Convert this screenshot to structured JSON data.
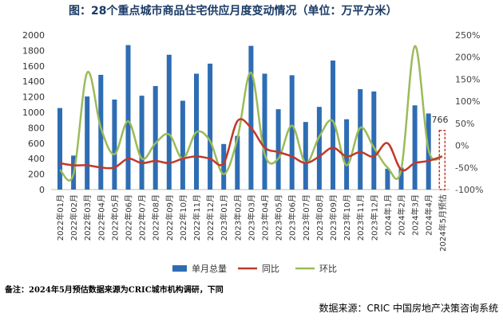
{
  "title": "图：28个重点城市商品住宅供应月度变动情况（单位：万平方米）",
  "note": "备注：2024年5月预估数据来源为CRIC城市机构调研，下同",
  "source": "数据来源：CRIC 中国房地产决策咨询系统",
  "callout_label": "766",
  "colors": {
    "bar": "#2e6db3",
    "yoy": "#c0392b",
    "mom": "#9bbb59",
    "forecast_box": "#c0392b"
  },
  "chart_data": {
    "type": "bar",
    "categories": [
      "2022年01月",
      "2022年02月",
      "2022年03月",
      "2022年04月",
      "2022年05月",
      "2022年06月",
      "2022年07月",
      "2022年08月",
      "2022年09月",
      "2022年10月",
      "2022年11月",
      "2022年12月",
      "2023年01月",
      "2023年02月",
      "2023年03月",
      "2023年04月",
      "2023年05月",
      "2023年06月",
      "2023年07月",
      "2023年08月",
      "2023年09月",
      "2023年10月",
      "2023年11月",
      "2023年12月",
      "2024年1月",
      "2024年2月",
      "2024年3月",
      "2024年4月",
      "2024年5月预估"
    ],
    "left_axis": {
      "min": 0,
      "max": 2000,
      "ticks": [
        "0",
        "200",
        "400",
        "600",
        "800",
        "1000",
        "1200",
        "1400",
        "1600",
        "1800",
        "2000"
      ]
    },
    "right_axis": {
      "min": -100,
      "max": 250,
      "ticks": [
        "-100%",
        "-50%",
        "0%",
        "50%",
        "100%",
        "150%",
        "200%",
        "250%"
      ]
    },
    "series": [
      {
        "name": "单月总量",
        "type": "bar",
        "axis": "left",
        "values": [
          1055,
          440,
          1205,
          1485,
          1165,
          1870,
          1215,
          1340,
          1745,
          1150,
          1500,
          1630,
          590,
          695,
          1860,
          1500,
          1040,
          1480,
          875,
          1070,
          1670,
          910,
          1300,
          1270,
          270,
          285,
          1090,
          985,
          766
        ]
      },
      {
        "name": "同比",
        "type": "line",
        "axis": "right",
        "values": [
          -40,
          -45,
          -45,
          -50,
          -50,
          -30,
          -40,
          -35,
          -40,
          -30,
          -25,
          -30,
          -40,
          55,
          40,
          -5,
          -15,
          -25,
          -40,
          -25,
          -5,
          -25,
          -15,
          -25,
          5,
          -55,
          -40,
          -35,
          -25
        ]
      },
      {
        "name": "环比",
        "type": "line",
        "axis": "right",
        "values": [
          -55,
          -65,
          165,
          40,
          -20,
          55,
          -30,
          5,
          25,
          -30,
          30,
          10,
          -65,
          15,
          165,
          -20,
          -30,
          45,
          -40,
          20,
          55,
          -45,
          40,
          -5,
          -50,
          -55,
          225,
          -10,
          -25
        ]
      }
    ],
    "legend_position": "bottom"
  }
}
